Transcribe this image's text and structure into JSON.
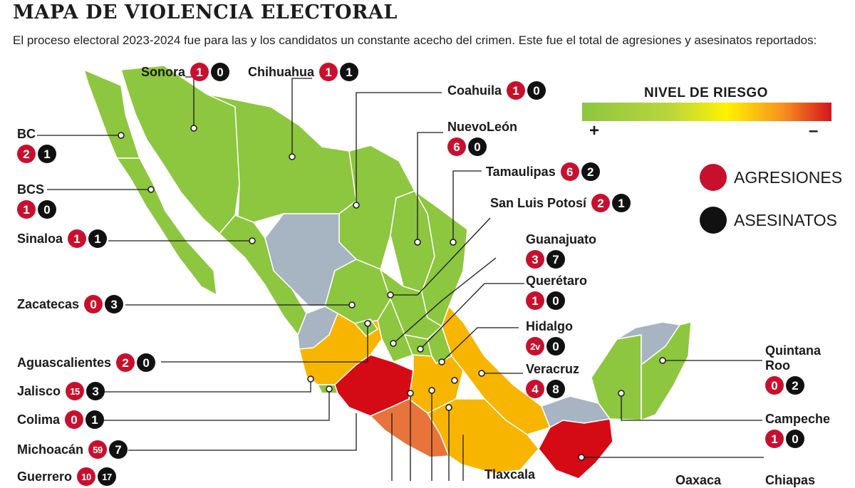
{
  "title": "MAPA DE VIOLENCIA ELECTORAL",
  "subtitle": "El proceso electoral 2023-2024 fue para las y los candidatos un constante acecho del crimen. Este fue el total de agresiones y asesinatos reportados:",
  "risk_scale": {
    "title": "NIVEL DE RIESGO",
    "low_symbol": "+",
    "high_symbol": "–",
    "colors": [
      "#8dc63f",
      "#fff200",
      "#f7941d",
      "#d7141f"
    ]
  },
  "legend": {
    "agresiones": "AGRESIONES",
    "asesinatos": "ASESINATOS",
    "agresiones_color": "#c8102e",
    "asesinatos_color": "#111111"
  },
  "region_colors": {
    "green": "#8dc63f",
    "yellow": "#f7b500",
    "orange": "#e8743b",
    "red": "#d40a14",
    "gray": "#a7b4c2"
  },
  "chart_data": {
    "type": "map",
    "states": [
      {
        "name": "Sonora",
        "agresiones": "1",
        "asesinatos": "0"
      },
      {
        "name": "Chihuahua",
        "agresiones": "1",
        "asesinatos": "1"
      },
      {
        "name": "Coahuila",
        "agresiones": "1",
        "asesinatos": "0"
      },
      {
        "name": "NuevoLeón",
        "agresiones": "6",
        "asesinatos": "0"
      },
      {
        "name": "Tamaulipas",
        "agresiones": "6",
        "asesinatos": "2"
      },
      {
        "name": "San Luis Potosí",
        "agresiones": "2",
        "asesinatos": "1"
      },
      {
        "name": "Guanajuato",
        "agresiones": "3",
        "asesinatos": "7"
      },
      {
        "name": "Querétaro",
        "agresiones": "1",
        "asesinatos": "0"
      },
      {
        "name": "Hidalgo",
        "agresiones": "2v",
        "asesinatos": "0"
      },
      {
        "name": "Veracruz",
        "agresiones": "4",
        "asesinatos": "8"
      },
      {
        "name": "BC",
        "agresiones": "2",
        "asesinatos": "1"
      },
      {
        "name": "BCS",
        "agresiones": "1",
        "asesinatos": "0"
      },
      {
        "name": "Sinaloa",
        "agresiones": "1",
        "asesinatos": "1"
      },
      {
        "name": "Zacatecas",
        "agresiones": "0",
        "asesinatos": "3"
      },
      {
        "name": "Aguascalientes",
        "agresiones": "2",
        "asesinatos": "0"
      },
      {
        "name": "Jalisco",
        "agresiones": "15",
        "asesinatos": "3"
      },
      {
        "name": "Colima",
        "agresiones": "0",
        "asesinatos": "1"
      },
      {
        "name": "Michoacán",
        "agresiones": "59",
        "asesinatos": "7"
      },
      {
        "name": "Guerrero",
        "agresiones": "10",
        "asesinatos": "17"
      },
      {
        "name": "Quintana Roo",
        "agresiones": "0",
        "asesinatos": "2"
      },
      {
        "name": "Campeche",
        "agresiones": "1",
        "asesinatos": "0"
      },
      {
        "name": "Tlaxcala",
        "agresiones": "",
        "asesinatos": ""
      },
      {
        "name": "Oaxaca",
        "agresiones": "",
        "asesinatos": ""
      },
      {
        "name": "Chiapas",
        "agresiones": "",
        "asesinatos": ""
      }
    ]
  }
}
